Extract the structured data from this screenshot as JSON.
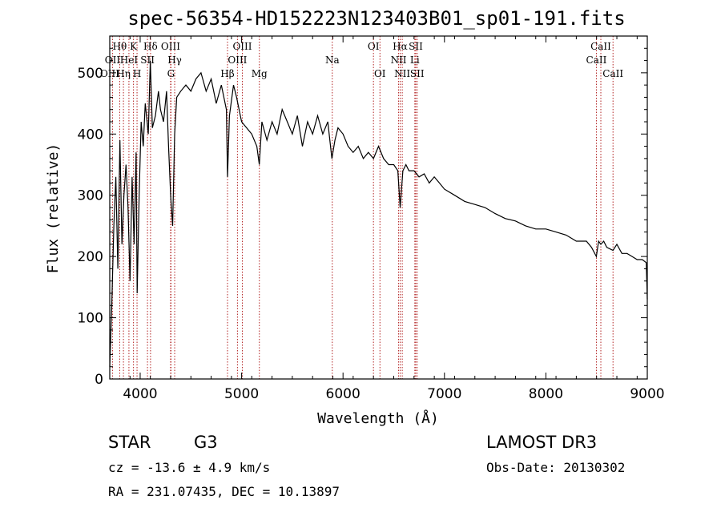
{
  "chart_data": {
    "type": "line",
    "title": "spec-56354-HD152223N123403B01_sp01-191.fits",
    "xlabel": "Wavelength (Å)",
    "ylabel": "Flux (relative)",
    "xlim": [
      3700,
      9000
    ],
    "ylim": [
      0,
      560
    ],
    "xticks": [
      4000,
      5000,
      6000,
      7000,
      8000,
      9000
    ],
    "yticks": [
      0,
      100,
      200,
      300,
      400,
      500
    ],
    "grid": false,
    "series": [
      {
        "name": "flux",
        "x": [
          3700,
          3720,
          3740,
          3760,
          3780,
          3800,
          3820,
          3840,
          3860,
          3880,
          3900,
          3920,
          3940,
          3960,
          3970,
          3990,
          4010,
          4030,
          4050,
          4080,
          4100,
          4120,
          4150,
          4180,
          4200,
          4230,
          4260,
          4280,
          4300,
          4320,
          4340,
          4360,
          4400,
          4450,
          4500,
          4550,
          4600,
          4650,
          4700,
          4750,
          4800,
          4850,
          4861,
          4880,
          4920,
          4950,
          5000,
          5050,
          5100,
          5150,
          5175,
          5200,
          5250,
          5300,
          5350,
          5400,
          5450,
          5500,
          5550,
          5600,
          5650,
          5700,
          5750,
          5800,
          5850,
          5890,
          5920,
          5950,
          6000,
          6050,
          6100,
          6150,
          6200,
          6250,
          6300,
          6350,
          6400,
          6450,
          6500,
          6540,
          6563,
          6590,
          6620,
          6650,
          6700,
          6750,
          6800,
          6850,
          6900,
          6950,
          7000,
          7100,
          7200,
          7300,
          7400,
          7500,
          7600,
          7700,
          7800,
          7900,
          8000,
          8100,
          8200,
          8300,
          8400,
          8450,
          8498,
          8520,
          8542,
          8570,
          8600,
          8662,
          8700,
          8750,
          8800,
          8850,
          8900,
          8950,
          8990,
          9000
        ],
        "y": [
          20,
          120,
          250,
          330,
          180,
          390,
          220,
          300,
          350,
          280,
          160,
          330,
          220,
          370,
          140,
          300,
          420,
          380,
          450,
          400,
          520,
          410,
          430,
          470,
          440,
          420,
          470,
          380,
          300,
          250,
          400,
          460,
          470,
          480,
          470,
          490,
          500,
          470,
          490,
          450,
          480,
          440,
          330,
          430,
          480,
          460,
          420,
          410,
          400,
          380,
          350,
          420,
          390,
          420,
          400,
          440,
          420,
          400,
          430,
          380,
          420,
          400,
          430,
          400,
          420,
          360,
          390,
          410,
          400,
          380,
          370,
          380,
          360,
          370,
          360,
          380,
          360,
          350,
          350,
          340,
          280,
          340,
          350,
          340,
          340,
          330,
          335,
          320,
          330,
          320,
          310,
          300,
          290,
          285,
          280,
          270,
          262,
          258,
          250,
          245,
          245,
          240,
          235,
          225,
          225,
          215,
          200,
          225,
          220,
          225,
          215,
          210,
          220,
          205,
          205,
          200,
          195,
          195,
          190,
          130
        ]
      }
    ],
    "spectral_lines": [
      {
        "label": "Hθ",
        "wavelength": 3798,
        "row": 1
      },
      {
        "label": "OII",
        "wavelength": 3727,
        "row": 2
      },
      {
        "label": "Hη",
        "wavelength": 3835,
        "row": 3
      },
      {
        "label": "OIII",
        "wavelength": 3700,
        "row": 3
      },
      {
        "label": "HeI",
        "wavelength": 3889,
        "row": 2
      },
      {
        "label": "K",
        "wavelength": 3934,
        "row": 1
      },
      {
        "label": "H",
        "wavelength": 3969,
        "row": 3
      },
      {
        "label": "SII",
        "wavelength": 4072,
        "row": 2
      },
      {
        "label": "Hδ",
        "wavelength": 4102,
        "row": 1
      },
      {
        "label": "OIII",
        "wavelength": 4300,
        "row": 1
      },
      {
        "label": "Hγ",
        "wavelength": 4340,
        "row": 2
      },
      {
        "label": "G",
        "wavelength": 4304,
        "row": 3
      },
      {
        "label": "Hβ",
        "wavelength": 4861,
        "row": 3
      },
      {
        "label": "OIII",
        "wavelength": 4959,
        "row": 2
      },
      {
        "label": "OIII",
        "wavelength": 5007,
        "row": 1
      },
      {
        "label": "Mg",
        "wavelength": 5175,
        "row": 3
      },
      {
        "label": "Na",
        "wavelength": 5894,
        "row": 2
      },
      {
        "label": "OI",
        "wavelength": 6300,
        "row": 1
      },
      {
        "label": "OI",
        "wavelength": 6364,
        "row": 3
      },
      {
        "label": "Hα",
        "wavelength": 6563,
        "row": 1
      },
      {
        "label": "NII",
        "wavelength": 6548,
        "row": 2
      },
      {
        "label": "NII",
        "wavelength": 6584,
        "row": 3
      },
      {
        "label": "SII",
        "wavelength": 6717,
        "row": 1
      },
      {
        "label": "Li",
        "wavelength": 6708,
        "row": 2
      },
      {
        "label": "SII",
        "wavelength": 6731,
        "row": 3
      },
      {
        "label": "CaII",
        "wavelength": 8542,
        "row": 1
      },
      {
        "label": "CaII",
        "wavelength": 8498,
        "row": 2
      },
      {
        "label": "CaII",
        "wavelength": 8662,
        "row": 3
      }
    ]
  },
  "info": {
    "object_class": "STAR",
    "subclass": "G3",
    "survey": "LAMOST DR3",
    "redshift": "cz = -13.6 ± 4.9 km/s",
    "obs_date": "Obs-Date: 20130302",
    "coords": "RA = 231.07435, DEC =  10.13897"
  },
  "colors": {
    "line_marker": "#b22222",
    "spectrum": "#000000"
  }
}
